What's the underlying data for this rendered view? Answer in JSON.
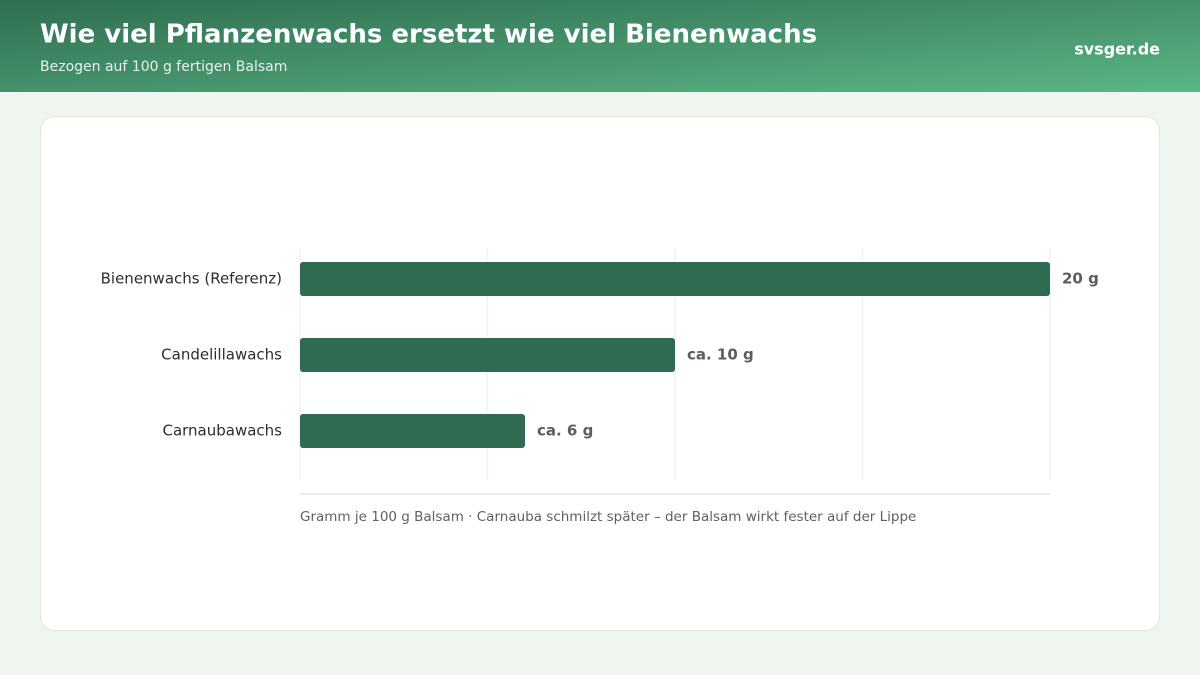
{
  "header": {
    "title": "Wie viel Pflanzenwachs ersetzt wie viel Bienenwachs",
    "subtitle": "Bezogen auf 100 g fertigen Balsam",
    "brand": "svsger.de"
  },
  "chart_data": {
    "type": "bar",
    "orientation": "horizontal",
    "categories": [
      "Bienenwachs (Referenz)",
      "Candelillawachs",
      "Carnaubawachs"
    ],
    "values": [
      20,
      10,
      6
    ],
    "value_labels": [
      "20 g",
      "ca. 10 g",
      "ca. 6 g"
    ],
    "color": "#2e6b50",
    "xlim": [
      0,
      20
    ],
    "xticks": [
      0,
      5,
      10,
      15,
      20
    ],
    "grid": true,
    "x_label": "Gramm je 100 g Balsam · Carnauba schmilzt später – der Balsam wirkt fester auf der Lippe"
  }
}
